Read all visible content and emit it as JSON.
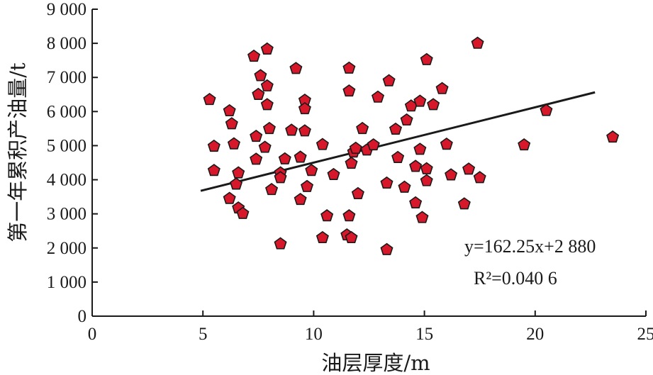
{
  "chart_data": {
    "type": "scatter",
    "xlabel": "油层厚度/m",
    "ylabel": "第一年累积产油量/t",
    "xlim": [
      0,
      25
    ],
    "ylim": [
      0,
      9000
    ],
    "x_ticks": [
      "0",
      "5",
      "10",
      "15",
      "20",
      "25"
    ],
    "y_ticks": [
      "0",
      "1 000",
      "2 000",
      "3 000",
      "4 000",
      "5 000",
      "6 000",
      "7 000",
      "8 000",
      "9 000"
    ],
    "grid": false,
    "marker": {
      "shape": "pentagon",
      "fill": "#d7182a",
      "stroke": "#1a1a1a"
    },
    "series": [
      {
        "points": [
          [
            5.3,
            6350
          ],
          [
            5.5,
            4980
          ],
          [
            5.5,
            4270
          ],
          [
            6.2,
            6020
          ],
          [
            6.3,
            5640
          ],
          [
            6.2,
            3450
          ],
          [
            6.4,
            5050
          ],
          [
            6.5,
            3870
          ],
          [
            6.6,
            4200
          ],
          [
            6.6,
            3170
          ],
          [
            6.8,
            3010
          ],
          [
            7.3,
            7620
          ],
          [
            7.4,
            5270
          ],
          [
            7.4,
            4600
          ],
          [
            7.5,
            6500
          ],
          [
            7.6,
            7050
          ],
          [
            7.8,
            4950
          ],
          [
            7.9,
            7830
          ],
          [
            7.9,
            6750
          ],
          [
            7.9,
            6200
          ],
          [
            8.0,
            5500
          ],
          [
            8.1,
            3710
          ],
          [
            8.5,
            4200
          ],
          [
            8.5,
            4060
          ],
          [
            8.5,
            2120
          ],
          [
            8.7,
            4610
          ],
          [
            9.0,
            5450
          ],
          [
            9.2,
            7260
          ],
          [
            9.4,
            4660
          ],
          [
            9.4,
            3420
          ],
          [
            9.6,
            6330
          ],
          [
            9.6,
            6080
          ],
          [
            9.6,
            5430
          ],
          [
            9.7,
            3800
          ],
          [
            9.9,
            4270
          ],
          [
            10.4,
            5030
          ],
          [
            10.4,
            2300
          ],
          [
            10.6,
            2940
          ],
          [
            10.9,
            4150
          ],
          [
            11.6,
            7270
          ],
          [
            11.6,
            6600
          ],
          [
            11.6,
            2940
          ],
          [
            11.5,
            2380
          ],
          [
            11.7,
            2300
          ],
          [
            11.7,
            4480
          ],
          [
            11.8,
            4810
          ],
          [
            11.9,
            4920
          ],
          [
            12.0,
            3590
          ],
          [
            12.2,
            5500
          ],
          [
            12.4,
            4870
          ],
          [
            12.7,
            5020
          ],
          [
            12.9,
            6420
          ],
          [
            13.3,
            1950
          ],
          [
            13.3,
            3900
          ],
          [
            13.4,
            6900
          ],
          [
            13.7,
            5480
          ],
          [
            13.8,
            4650
          ],
          [
            14.1,
            3780
          ],
          [
            14.2,
            5750
          ],
          [
            14.4,
            6160
          ],
          [
            14.6,
            4390
          ],
          [
            14.6,
            3320
          ],
          [
            14.8,
            6300
          ],
          [
            14.8,
            4890
          ],
          [
            14.9,
            2890
          ],
          [
            15.1,
            7520
          ],
          [
            15.1,
            4320
          ],
          [
            15.1,
            3970
          ],
          [
            15.4,
            6200
          ],
          [
            15.8,
            6670
          ],
          [
            16.0,
            5040
          ],
          [
            16.2,
            4140
          ],
          [
            16.8,
            3290
          ],
          [
            17.0,
            4310
          ],
          [
            17.4,
            8000
          ],
          [
            17.5,
            4060
          ],
          [
            19.5,
            5020
          ],
          [
            20.5,
            6030
          ],
          [
            23.5,
            5250
          ]
        ]
      }
    ],
    "trendline": {
      "slope": 162.25,
      "intercept": 2880,
      "x_range": [
        4.9,
        22.7
      ],
      "equation": "y=162.25x+2 880",
      "r_squared": "R²=0.040 6"
    }
  }
}
